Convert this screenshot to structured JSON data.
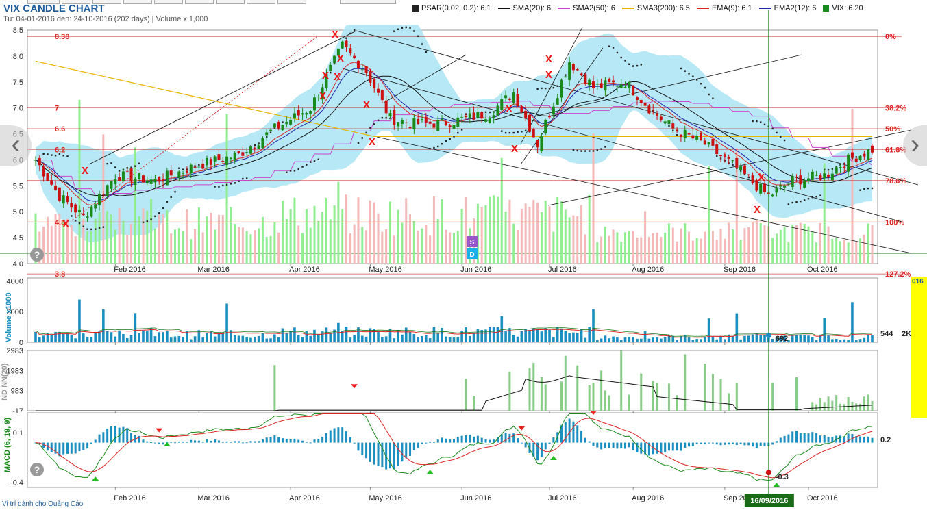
{
  "header": {
    "title": "VIX CANDLE CHART",
    "subtitle": "Tu: 04-01-2016 den: 24-10-2016 (202 days) | Volume x 1,000"
  },
  "legend": [
    {
      "label": "PSAR(0.02, 0.2): 6.1",
      "color": "#222222",
      "kind": "square"
    },
    {
      "label": "SMA(20): 6",
      "color": "#111111",
      "kind": "line"
    },
    {
      "label": "SMA2(50): 6",
      "color": "#cc44cc",
      "kind": "line"
    },
    {
      "label": "SMA3(200): 6.5",
      "color": "#e8b400",
      "kind": "line"
    },
    {
      "label": "EMA(9): 6.1",
      "color": "#dd2222",
      "kind": "line"
    },
    {
      "label": "EMA2(12): 6",
      "color": "#2222aa",
      "kind": "line"
    },
    {
      "label": "VIX: 6.20",
      "color": "#1a8a1a",
      "kind": "square"
    }
  ],
  "footer": {
    "ad_text": "Vi trí dành cho Quảng Cáo"
  },
  "yellow_panel": {
    "text": "016"
  },
  "colors": {
    "up": "#1a8a1a",
    "down": "#cc1111",
    "up_volume": "#90ee90",
    "down_volume": "#f5b8b8",
    "volume_bar": "#1a8fc0",
    "band": "#aee6f5",
    "fib_line": "#cc2222",
    "cursor": "#1a8a1a"
  },
  "chart_data": [
    {
      "type": "candlestick",
      "title": "VIX CANDLE CHART",
      "months": [
        "Feb 2016",
        "Mar 2016",
        "Apr 2016",
        "May 2016",
        "Jun 2016",
        "Jul 2016",
        "Aug 2016",
        "Sep 2016",
        "Oct 2016"
      ],
      "y_ticks": [
        "8.5",
        "8.0",
        "7.5",
        "7.0",
        "6.5",
        "6.0",
        "5.5",
        "5.0",
        "4.5",
        "4.0"
      ],
      "ylim": [
        4.0,
        8.5
      ],
      "close_anchors": [
        {
          "date": "2016-01-04",
          "close": 6.0
        },
        {
          "date": "2016-01-12",
          "close": 5.3
        },
        {
          "date": "2016-01-20",
          "close": 4.9
        },
        {
          "date": "2016-02-01",
          "close": 5.7
        },
        {
          "date": "2016-02-15",
          "close": 5.6
        },
        {
          "date": "2016-03-01",
          "close": 5.9
        },
        {
          "date": "2016-03-15",
          "close": 6.1
        },
        {
          "date": "2016-03-28",
          "close": 6.6
        },
        {
          "date": "2016-04-08",
          "close": 7.0
        },
        {
          "date": "2016-04-20",
          "close": 8.2
        },
        {
          "date": "2016-04-28",
          "close": 7.7
        },
        {
          "date": "2016-05-06",
          "close": 6.8
        },
        {
          "date": "2016-05-15",
          "close": 6.7
        },
        {
          "date": "2016-05-25",
          "close": 6.7
        },
        {
          "date": "2016-06-10",
          "close": 6.9
        },
        {
          "date": "2016-06-20",
          "close": 7.3
        },
        {
          "date": "2016-06-28",
          "close": 6.3
        },
        {
          "date": "2016-07-08",
          "close": 7.9
        },
        {
          "date": "2016-07-18",
          "close": 7.4
        },
        {
          "date": "2016-07-28",
          "close": 7.5
        },
        {
          "date": "2016-08-05",
          "close": 7.0
        },
        {
          "date": "2016-08-15",
          "close": 6.6
        },
        {
          "date": "2016-08-25",
          "close": 6.3
        },
        {
          "date": "2016-09-05",
          "close": 5.9
        },
        {
          "date": "2016-09-16",
          "close": 5.3
        },
        {
          "date": "2016-09-26",
          "close": 5.6
        },
        {
          "date": "2016-10-06",
          "close": 5.7
        },
        {
          "date": "2016-10-14",
          "close": 6.0
        },
        {
          "date": "2016-10-24",
          "close": 6.2
        }
      ],
      "psar_value": 6.1,
      "last_close": 6.2,
      "fibonacci": [
        {
          "label": "0%",
          "value": 8.38,
          "left_label": "8.38"
        },
        {
          "label": "38.2%",
          "value": 7.0,
          "left_label": "7"
        },
        {
          "label": "50%",
          "value": 6.6,
          "left_label": "6.6"
        },
        {
          "label": "61.8%",
          "value": 6.2,
          "left_label": "6.2"
        },
        {
          "label": "78.6%",
          "value": 5.6,
          "left_label": ""
        },
        {
          "label": "100%",
          "value": 4.8,
          "left_label": "4.8"
        },
        {
          "label": "127.2%",
          "value": 3.8,
          "left_label": "3.8"
        }
      ],
      "markers": [
        "S",
        "D"
      ]
    },
    {
      "type": "bar",
      "title": "Volume x1000",
      "y_ticks": [
        "4000",
        "2000",
        "0"
      ],
      "ylim": [
        0,
        4200
      ],
      "last_value_label": "544",
      "cursor_value_label": "692",
      "side_label": "2K"
    },
    {
      "type": "bar",
      "title": "ND NN(20)",
      "y_ticks": [
        "2983",
        "1983",
        "983",
        "-17"
      ],
      "ylim": [
        -17,
        2983
      ]
    },
    {
      "type": "line",
      "title": "MACD (6, 19, 9)",
      "y_ticks": [
        "0.1",
        "-0.4"
      ],
      "ylim": [
        -0.45,
        0.3
      ],
      "last_value_label": "0.2",
      "cursor_value_label": "-0.3"
    }
  ],
  "cursor": {
    "date": "16/09/2016"
  }
}
